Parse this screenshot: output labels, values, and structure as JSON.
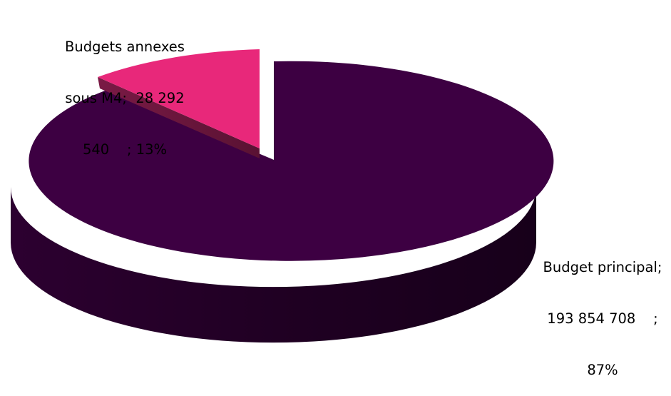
{
  "chart_data": {
    "type": "pie",
    "title": "",
    "slices": [
      {
        "name": "Budget principal",
        "value": 193854708,
        "percent": 87,
        "label_lines": [
          "Budget principal;",
          "193 854 708    ;",
          "87%"
        ],
        "color": "#3d0042"
      },
      {
        "name": "Budgets annexes sous M4",
        "value": 28292540,
        "percent": 13,
        "label_lines": [
          "Budgets annexes",
          "sous M4;  28 292",
          "540    ; 13%"
        ],
        "color": "#e8287a"
      }
    ],
    "style": "3d-exploded",
    "legend": "none"
  }
}
